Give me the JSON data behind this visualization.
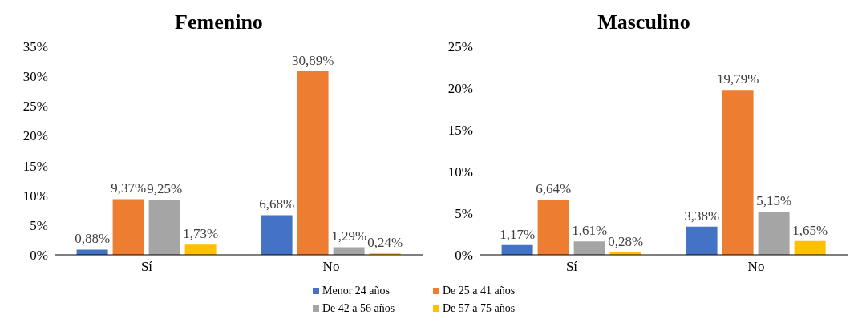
{
  "chart_data": [
    {
      "type": "bar",
      "title": "Femenino",
      "categories": [
        "Sí",
        "No"
      ],
      "legend": "bottom",
      "series": [
        {
          "name": "Menor 24 años",
          "color": "#4472c4",
          "values": [
            0.88,
            6.68
          ],
          "value_labels": [
            "0,88%",
            "6,68%"
          ]
        },
        {
          "name": "De 25 a 41 años",
          "color": "#ed7d31",
          "values": [
            9.37,
            30.89
          ],
          "value_labels": [
            "9,37%",
            "30,89%"
          ]
        },
        {
          "name": "De 42 a 56 años",
          "color": "#a5a5a5",
          "values": [
            9.25,
            1.29
          ],
          "value_labels": [
            "9,25%",
            "1,29%"
          ]
        },
        {
          "name": "De 57 a 75 años",
          "color": "#ffc000",
          "values": [
            1.73,
            0.24
          ],
          "value_labels": [
            "1,73%",
            "0,24%"
          ]
        }
      ],
      "ylim": [
        0,
        35
      ],
      "yticks": [
        {
          "value": 0,
          "label": "0%"
        },
        {
          "value": 5,
          "label": "5%"
        },
        {
          "value": 10,
          "label": "10%"
        },
        {
          "value": 15,
          "label": "15%"
        },
        {
          "value": 20,
          "label": "20%"
        },
        {
          "value": 25,
          "label": "25%"
        },
        {
          "value": 30,
          "label": "30%"
        },
        {
          "value": 35,
          "label": "35%"
        }
      ]
    },
    {
      "type": "bar",
      "title": "Masculino",
      "categories": [
        "Sí",
        "No"
      ],
      "series": [
        {
          "color": "#4472c4",
          "values": [
            1.17,
            3.38
          ],
          "value_labels": [
            "1,17%",
            "3,38%"
          ]
        },
        {
          "color": "#ed7d31",
          "values": [
            6.64,
            19.79
          ],
          "value_labels": [
            "6,64%",
            "19,79%"
          ]
        },
        {
          "color": "#a5a5a5",
          "values": [
            1.61,
            5.15
          ],
          "value_labels": [
            "1,61%",
            "5,15%"
          ]
        },
        {
          "color": "#ffc000",
          "values": [
            0.28,
            1.65
          ],
          "value_labels": [
            "0,28%",
            "1,65%"
          ]
        }
      ],
      "ylim": [
        0,
        25
      ],
      "yticks": [
        {
          "value": 0,
          "label": "0%"
        },
        {
          "value": 5,
          "label": "5%"
        },
        {
          "value": 10,
          "label": "10%"
        },
        {
          "value": 15,
          "label": "15%"
        },
        {
          "value": 20,
          "label": "20%"
        },
        {
          "value": 25,
          "label": "25%"
        }
      ]
    }
  ]
}
